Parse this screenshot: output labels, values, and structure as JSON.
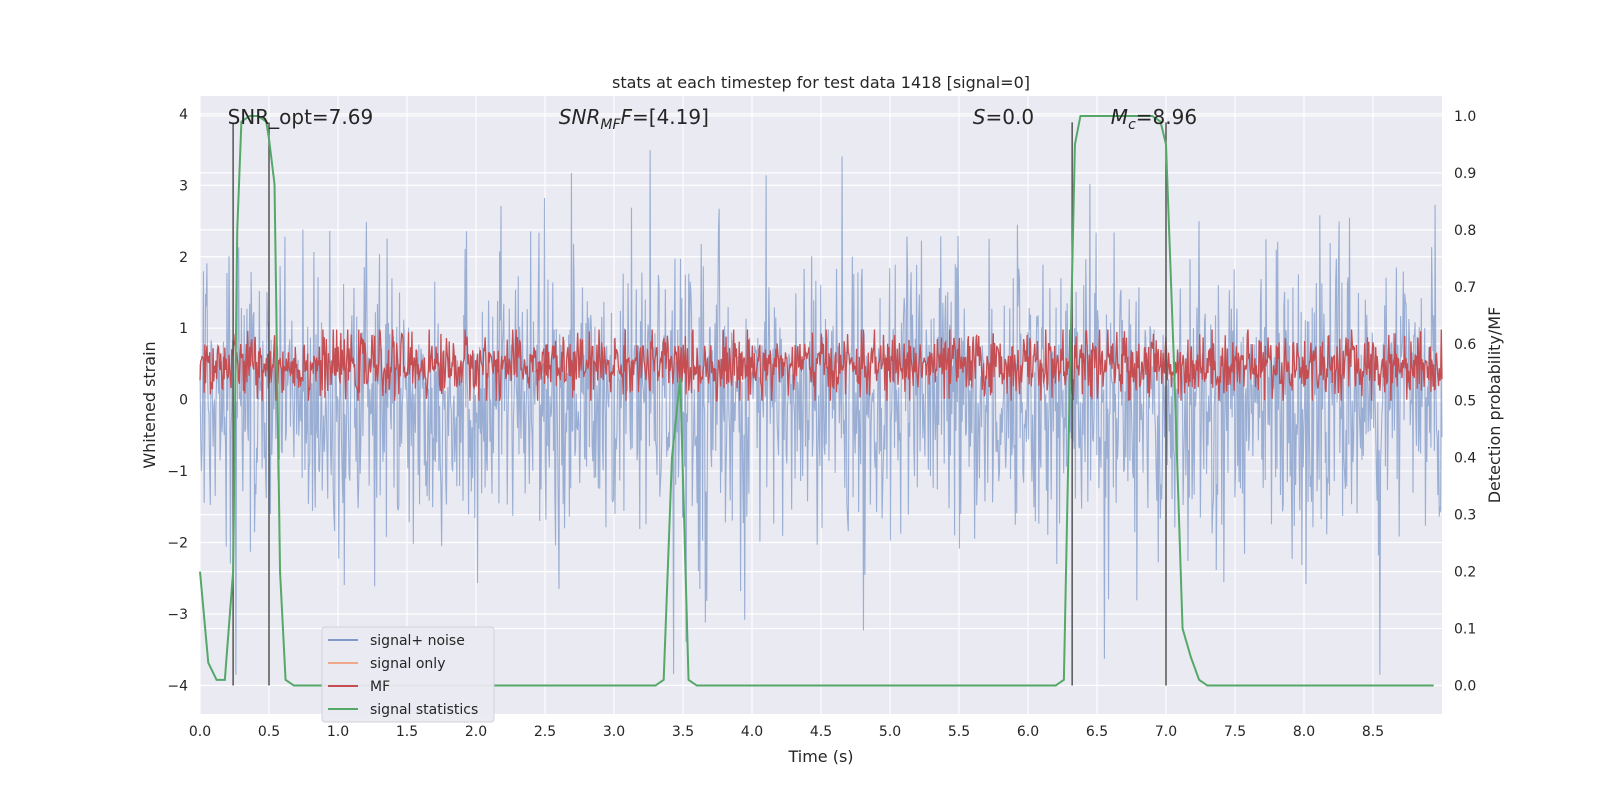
{
  "chart_data": {
    "type": "line",
    "title": "stats at each timestep for test data 1418 [signal=0]",
    "xlabel": "Time (s)",
    "ylabel_left": "Whitened strain",
    "ylabel_right": "Detection probability/MF",
    "xlim": [
      0,
      9
    ],
    "ylim_left": [
      -4.4,
      4.25
    ],
    "ylim_right": [
      -0.05,
      1.035
    ],
    "xticks": [
      "0.0",
      "0.5",
      "1.0",
      "1.5",
      "2.0",
      "2.5",
      "3.0",
      "3.5",
      "4.0",
      "4.5",
      "5.0",
      "5.5",
      "6.0",
      "6.5",
      "7.0",
      "7.5",
      "8.0",
      "8.5"
    ],
    "yticks_left": [
      "4",
      "3",
      "2",
      "1",
      "0",
      "−1",
      "−2",
      "−3",
      "−4"
    ],
    "yticks_right": [
      "1.0",
      "0.9",
      "0.8",
      "0.7",
      "0.6",
      "0.5",
      "0.4",
      "0.3",
      "0.2",
      "0.1",
      "0.0"
    ],
    "grid": true,
    "legend_position": "lower-left",
    "annotations": [
      {
        "text": "SNR_opt=7.69",
        "x": 0.2
      },
      {
        "text": "SNR",
        "sub": "MF",
        "after": "F=[4.19]",
        "x": 2.6
      },
      {
        "text": "S",
        "after": "=0.0",
        "x": 5.6
      },
      {
        "text": "M",
        "sub": "c",
        "after": "=8.96",
        "x": 6.6
      }
    ],
    "vertical_lines": [
      0.24,
      0.5,
      6.32,
      7.0
    ],
    "series": [
      {
        "name": "signal+ noise",
        "color": "#7f9ac8",
        "axis": "left",
        "description_stats": {
          "n": 1800,
          "typical_min": -2.0,
          "typical_max": 2.0,
          "extreme_max": 3.85,
          "extreme_min": -3.85
        }
      },
      {
        "name": "signal only",
        "color": "#f0a88a",
        "axis": "left",
        "values": []
      },
      {
        "name": "MF",
        "color": "#c44e52",
        "axis": "right",
        "description_stats": {
          "n": 1800,
          "min": 0.5,
          "max": 0.625
        }
      },
      {
        "name": "signal statistics",
        "color": "#55a868",
        "axis": "right",
        "x": [
          0.0,
          0.06,
          0.12,
          0.18,
          0.24,
          0.27,
          0.3,
          0.36,
          0.42,
          0.48,
          0.5,
          0.54,
          0.58,
          0.62,
          0.68,
          3.3,
          3.36,
          3.42,
          3.48,
          3.54,
          3.6,
          6.2,
          6.26,
          6.3,
          6.34,
          6.38,
          6.42,
          6.9,
          6.96,
          7.0,
          7.06,
          7.12,
          7.18,
          7.24,
          7.3,
          7.35,
          7.4,
          8.94
        ],
        "values": [
          0.2,
          0.04,
          0.01,
          0.01,
          0.2,
          0.8,
          0.99,
          1.0,
          1.0,
          0.99,
          0.96,
          0.88,
          0.2,
          0.01,
          0.0,
          0.0,
          0.01,
          0.4,
          0.54,
          0.01,
          0.0,
          0.0,
          0.01,
          0.5,
          0.95,
          1.0,
          1.0,
          1.0,
          0.99,
          0.95,
          0.55,
          0.1,
          0.05,
          0.01,
          0.0,
          0.0,
          0.0,
          0.0
        ]
      }
    ]
  }
}
